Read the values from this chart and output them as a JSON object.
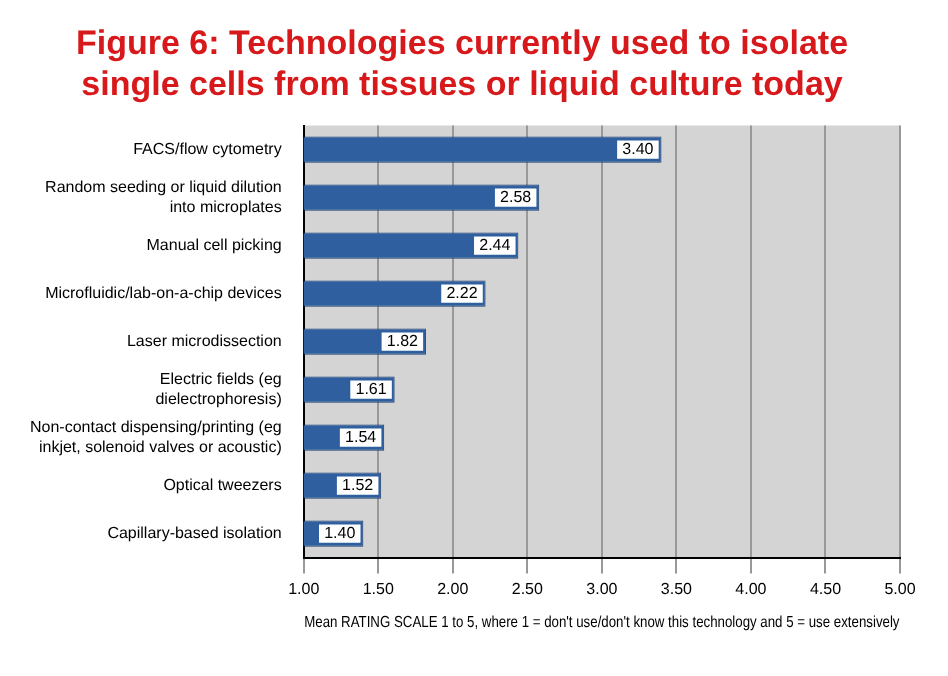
{
  "chart_data": {
    "type": "bar",
    "orientation": "horizontal",
    "title": "Figure 6: Technologies currently used to isolate single cells from tissues or liquid culture today",
    "categories": [
      "FACS/flow cytometry",
      "Random seeding or liquid dilution into microplates",
      "Manual cell picking",
      "Microfluidic/lab-on-a-chip devices",
      "Laser microdissection",
      "Electric fields (eg dielectrophoresis)",
      "Non-contact dispensing/printing (eg inkjet, solenoid valves or acoustic)",
      "Optical tweezers",
      "Capillary-based isolation"
    ],
    "values": [
      3.4,
      2.58,
      2.44,
      2.22,
      1.82,
      1.61,
      1.54,
      1.52,
      1.4
    ],
    "value_labels": [
      "3.40",
      "2.58",
      "2.44",
      "2.22",
      "1.82",
      "1.61",
      "1.54",
      "1.52",
      "1.40"
    ],
    "color": "#2f5f9e",
    "xlim": [
      1,
      5
    ],
    "xticks": [
      {
        "value": 1,
        "label": "1.00"
      },
      {
        "value": 1.5,
        "label": "1.50"
      },
      {
        "value": 2,
        "label": "2.00"
      },
      {
        "value": 2.5,
        "label": "2.50"
      },
      {
        "value": 3,
        "label": "3.00"
      },
      {
        "value": 3.5,
        "label": "3.50"
      },
      {
        "value": 4,
        "label": "4.00"
      },
      {
        "value": 4.5,
        "label": "4.50"
      },
      {
        "value": 5,
        "label": "5.00"
      }
    ],
    "xlabel": "Mean RATING SCALE 1 to 5, where 1 = don't use/don't know this technology and 5 = use extensively",
    "grid": "x"
  }
}
